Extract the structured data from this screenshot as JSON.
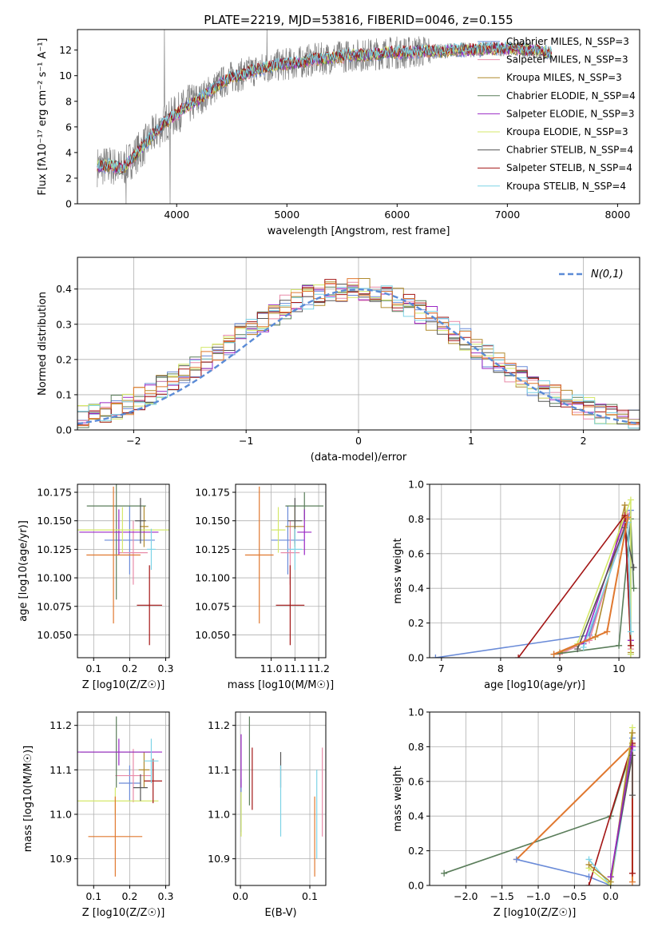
{
  "figure": {
    "title": "PLATE=2219, MJD=53816, FIBERID=0046, z=0.155"
  },
  "colors": {
    "models": [
      "#6a8bd8",
      "#e88aa8",
      "#b08a2e",
      "#5a7d5a",
      "#9a27c4",
      "#d4e86a",
      "#555555",
      "#a31515",
      "#7ed3e6"
    ],
    "orange": "#e0782f",
    "data": "#808080",
    "grid": "#b0b0b0"
  },
  "chart_data": [
    {
      "id": "spectrum",
      "type": "line",
      "title": "PLATE=2219, MJD=53816, FIBERID=0046, z=0.155",
      "xlabel": "wavelength [Angstrom, rest frame]",
      "ylabel": "Flux [fλ10⁻¹⁷ erg cm⁻² s⁻¹ A⁻¹]",
      "xlim": [
        3100,
        8200
      ],
      "ylim": [
        0,
        13.6
      ],
      "xticks": [
        4000,
        5000,
        6000,
        7000,
        8000
      ],
      "yticks": [
        0,
        2,
        4,
        6,
        8,
        10,
        12
      ],
      "grid": false,
      "legend_position": "top-right",
      "legend": [
        "Chabrier MILES, N_SSP=3",
        "Salpeter MILES, N_SSP=3",
        "Kroupa MILES, N_SSP=3",
        "Chabrier ELODIE, N_SSP=4",
        "Salpeter ELODIE, N_SSP=3",
        "Kroupa ELODIE, N_SSP=3",
        "Chabrier STELIB, N_SSP=4",
        "Salpeter STELIB, N_SSP=4",
        "Kroupa STELIB, N_SSP=4"
      ],
      "model_curve": {
        "x": [
          3280,
          3400,
          3500,
          3540,
          3600,
          3700,
          3800,
          3900,
          4000,
          4100,
          4200,
          4300,
          4400,
          4500,
          4600,
          4700,
          4800,
          4900,
          5000,
          5100,
          5200,
          5300,
          5400,
          5500,
          5600,
          5700,
          5800,
          5900,
          6000,
          6100,
          6200,
          6300,
          6400,
          6500,
          6600,
          6700,
          6800,
          6900,
          7000,
          7100,
          7200,
          7300,
          7400
        ],
        "y": [
          2.9,
          3.0,
          2.7,
          3.0,
          3.6,
          4.5,
          5.5,
          6.4,
          7.0,
          7.7,
          8.1,
          8.8,
          9.4,
          9.9,
          10.1,
          10.4,
          10.6,
          10.8,
          10.9,
          11.0,
          11.2,
          11.3,
          11.4,
          11.5,
          11.6,
          11.6,
          11.7,
          11.8,
          11.8,
          11.8,
          11.9,
          11.9,
          11.9,
          12.0,
          12.0,
          12.0,
          12.1,
          12.1,
          12.1,
          12.1,
          12.0,
          11.9,
          11.7
        ]
      }
    },
    {
      "id": "residuals",
      "type": "line",
      "xlabel": "(data-model)/error",
      "ylabel": "Normed distribution",
      "xlim": [
        -2.5,
        2.5
      ],
      "ylim": [
        0,
        0.49
      ],
      "xticks": [
        -2,
        -1,
        0,
        1,
        2
      ],
      "yticks": [
        0.0,
        0.1,
        0.2,
        0.3,
        0.4
      ],
      "grid": true,
      "legend": [
        "N(0,1)"
      ],
      "legend_position": "top-right",
      "bin_width": 0.1,
      "gaussian": {
        "mean": 0,
        "sigma": 1
      }
    },
    {
      "id": "age-vs-Z",
      "type": "scatter",
      "xlabel": "Z [log10(Z/Z☉)]",
      "ylabel": "age  [log10(age/yr)]",
      "xlim": [
        0.055,
        0.31
      ],
      "ylim": [
        10.03,
        10.182
      ],
      "xticks": [
        0.1,
        0.2,
        0.3
      ],
      "yticks": [
        10.05,
        10.075,
        10.1,
        10.125,
        10.15,
        10.175
      ],
      "grid": true,
      "points": [
        {
          "c": 0,
          "x": 0.2,
          "y": 10.133,
          "ex": 0.07,
          "ey": 0.03
        },
        {
          "c": 1,
          "x": 0.21,
          "y": 10.122,
          "ex": 0.04,
          "ey": 0.028
        },
        {
          "c": 2,
          "x": 0.24,
          "y": 10.145,
          "ex": 0.012,
          "ey": 0.018
        },
        {
          "c": 3,
          "x": 0.163,
          "y": 10.163,
          "ex": 0.082,
          "ey": 0.082
        },
        {
          "c": 4,
          "x": 0.17,
          "y": 10.14,
          "ex": 0.11,
          "ey": 0.02
        },
        {
          "c": 5,
          "x": 0.18,
          "y": 10.142,
          "ex": 0.13,
          "ey": 0.02
        },
        {
          "c": 6,
          "x": 0.23,
          "y": 10.15,
          "ex": 0.015,
          "ey": 0.02
        },
        {
          "c": 7,
          "x": 0.255,
          "y": 10.076,
          "ex": 0.035,
          "ey": 0.035
        },
        {
          "c": 8,
          "x": 0.26,
          "y": 10.125,
          "ex": 0.012,
          "ey": 0.018
        },
        {
          "c": "orange",
          "x": 0.155,
          "y": 10.12,
          "ex": 0.075,
          "ey": 0.06
        }
      ]
    },
    {
      "id": "age-vs-mass",
      "type": "scatter",
      "xlabel": "mass [log10(M/M☉)]",
      "ylabel": "",
      "xlim": [
        10.85,
        11.23
      ],
      "ylim": [
        10.03,
        10.182
      ],
      "xticks": [
        11.0,
        11.1,
        11.2
      ],
      "yticks": [
        10.05,
        10.075,
        10.1,
        10.125,
        10.15,
        10.175
      ],
      "grid": true,
      "points": [
        {
          "c": 0,
          "x": 11.07,
          "y": 10.133,
          "ex": 0.07,
          "ey": 0.03
        },
        {
          "c": 1,
          "x": 11.08,
          "y": 10.122,
          "ex": 0.04,
          "ey": 0.028
        },
        {
          "c": 2,
          "x": 11.1,
          "y": 10.145,
          "ex": 0.04,
          "ey": 0.018
        },
        {
          "c": 3,
          "x": 11.14,
          "y": 10.163,
          "ex": 0.08,
          "ey": 0.012
        },
        {
          "c": 4,
          "x": 11.14,
          "y": 10.14,
          "ex": 0.03,
          "ey": 0.02
        },
        {
          "c": 5,
          "x": 11.03,
          "y": 10.142,
          "ex": 0.03,
          "ey": 0.02
        },
        {
          "c": 6,
          "x": 11.1,
          "y": 10.15,
          "ex": 0.03,
          "ey": 0.02
        },
        {
          "c": 7,
          "x": 11.08,
          "y": 10.076,
          "ex": 0.06,
          "ey": 0.035
        },
        {
          "c": 8,
          "x": 11.1,
          "y": 10.125,
          "ex": 0.03,
          "ey": 0.018
        },
        {
          "c": "orange",
          "x": 10.95,
          "y": 10.12,
          "ex": 0.06,
          "ey": 0.06
        }
      ]
    },
    {
      "id": "weight-vs-age",
      "type": "line",
      "xlabel": "age  [log10(age/yr)]",
      "ylabel": "mass weight",
      "xlim": [
        6.8,
        10.35
      ],
      "ylim": [
        0,
        1.0
      ],
      "xticks": [
        7,
        8,
        9,
        10
      ],
      "yticks": [
        0.0,
        0.2,
        0.4,
        0.6,
        0.8,
        1.0
      ],
      "grid": true,
      "series": [
        {
          "c": 0,
          "x": [
            6.9,
            9.5,
            10.2,
            10.2
          ],
          "y": [
            0.0,
            0.13,
            0.85,
            0.02
          ]
        },
        {
          "c": 1,
          "x": [
            9.0,
            9.5,
            10.15,
            10.2
          ],
          "y": [
            0.02,
            0.1,
            0.83,
            0.05
          ]
        },
        {
          "c": 2,
          "x": [
            9.0,
            9.6,
            10.1,
            10.2
          ],
          "y": [
            0.03,
            0.12,
            0.88,
            0.03
          ]
        },
        {
          "c": 3,
          "x": [
            8.9,
            10.0,
            10.2,
            10.25
          ],
          "y": [
            0.02,
            0.07,
            0.8,
            0.4
          ]
        },
        {
          "c": 4,
          "x": [
            9.4,
            10.1,
            10.2
          ],
          "y": [
            0.08,
            0.8,
            0.1
          ]
        },
        {
          "c": 5,
          "x": [
            9.3,
            10.2,
            10.2
          ],
          "y": [
            0.08,
            0.91,
            0.02
          ]
        },
        {
          "c": 6,
          "x": [
            9.3,
            10.1,
            10.25
          ],
          "y": [
            0.05,
            0.75,
            0.52
          ]
        },
        {
          "c": 7,
          "x": [
            8.3,
            10.1,
            10.2
          ],
          "y": [
            0.0,
            0.82,
            0.07
          ]
        },
        {
          "c": 8,
          "x": [
            9.4,
            10.15,
            10.2
          ],
          "y": [
            0.06,
            0.78,
            0.15
          ]
        },
        {
          "c": "orange",
          "x": [
            8.9,
            9.8,
            10.15
          ],
          "y": [
            0.02,
            0.15,
            0.81
          ]
        }
      ]
    },
    {
      "id": "mass-vs-Z",
      "type": "scatter",
      "xlabel": "Z [log10(Z/Z☉)]",
      "ylabel": "mass [log10(M/M☉)]",
      "xlim": [
        0.055,
        0.31
      ],
      "ylim": [
        10.84,
        11.23
      ],
      "xticks": [
        0.1,
        0.2,
        0.3
      ],
      "yticks": [
        10.9,
        11.0,
        11.1,
        11.2
      ],
      "grid": true,
      "points": [
        {
          "c": 0,
          "x": 0.2,
          "y": 11.07,
          "ex": 0.03,
          "ey": 0.04
        },
        {
          "c": 1,
          "x": 0.21,
          "y": 11.087,
          "ex": 0.05,
          "ey": 0.06
        },
        {
          "c": 2,
          "x": 0.24,
          "y": 11.1,
          "ex": 0.015,
          "ey": 0.04
        },
        {
          "c": 3,
          "x": 0.163,
          "y": 11.14,
          "ex": 0.1,
          "ey": 0.08
        },
        {
          "c": 4,
          "x": 0.17,
          "y": 11.14,
          "ex": 0.12,
          "ey": 0.03
        },
        {
          "c": 5,
          "x": 0.16,
          "y": 11.03,
          "ex": 0.12,
          "ey": 0.03
        },
        {
          "c": 6,
          "x": 0.23,
          "y": 11.06,
          "ex": 0.02,
          "ey": 0.03
        },
        {
          "c": 7,
          "x": 0.265,
          "y": 11.075,
          "ex": 0.025,
          "ey": 0.05
        },
        {
          "c": 8,
          "x": 0.26,
          "y": 11.12,
          "ex": 0.02,
          "ey": 0.05
        },
        {
          "c": "orange",
          "x": 0.16,
          "y": 10.95,
          "ex": 0.075,
          "ey": 0.09
        }
      ]
    },
    {
      "id": "mass-vs-EBV",
      "type": "scatter",
      "xlabel": "E(B-V)",
      "ylabel": "",
      "xlim": [
        -0.007,
        0.123
      ],
      "ylim": [
        10.84,
        11.23
      ],
      "xticks": [
        0.0,
        0.1
      ],
      "yticks": [
        10.9,
        11.0,
        11.1,
        11.2
      ],
      "grid": true,
      "points": [
        {
          "c": 0,
          "x": 0.001,
          "y": 11.02,
          "ex": 0,
          "ey": 0.06
        },
        {
          "c": 4,
          "x": 0.001,
          "y": 11.12,
          "ex": 0,
          "ey": 0.06
        },
        {
          "c": 3,
          "x": 0.013,
          "y": 11.12,
          "ex": 0,
          "ey": 0.1
        },
        {
          "c": 7,
          "x": 0.017,
          "y": 11.08,
          "ex": 0,
          "ey": 0.07
        },
        {
          "c": 5,
          "x": 0.001,
          "y": 11.0,
          "ex": 0,
          "ey": 0.05
        },
        {
          "c": 6,
          "x": 0.058,
          "y": 11.1,
          "ex": 0,
          "ey": 0.04
        },
        {
          "c": 8,
          "x": 0.058,
          "y": 11.03,
          "ex": 0,
          "ey": 0.08
        },
        {
          "c": "orange",
          "x": 0.107,
          "y": 10.95,
          "ex": 0,
          "ey": 0.09
        },
        {
          "c": 8,
          "x": 0.11,
          "y": 11.0,
          "ex": 0,
          "ey": 0.1
        },
        {
          "c": 1,
          "x": 0.118,
          "y": 11.05,
          "ex": 0,
          "ey": 0.1
        }
      ]
    },
    {
      "id": "weight-vs-Z",
      "type": "line",
      "xlabel": "Z [log10(Z/Z☉)]",
      "ylabel": "mass weight",
      "xlim": [
        -2.5,
        0.4
      ],
      "ylim": [
        0,
        1.0
      ],
      "xticks": [
        -2.0,
        -1.5,
        -1.0,
        -0.5,
        0.0
      ],
      "yticks": [
        0.0,
        0.2,
        0.4,
        0.6,
        0.8,
        1.0
      ],
      "grid": true,
      "series": [
        {
          "c": 3,
          "x": [
            -2.3,
            0.0,
            0.3
          ],
          "y": [
            0.07,
            0.4,
            0.8
          ]
        },
        {
          "c": "orange",
          "x": [
            -1.3,
            0.3,
            0.3
          ],
          "y": [
            0.15,
            0.81,
            0.02
          ]
        },
        {
          "c": 0,
          "x": [
            -1.3,
            -0.3,
            0.0,
            0.3
          ],
          "y": [
            0.15,
            0.05,
            0.0,
            0.85
          ]
        },
        {
          "c": 7,
          "x": [
            -0.3,
            0.3,
            0.3
          ],
          "y": [
            0.0,
            0.82,
            0.07
          ]
        },
        {
          "c": 8,
          "x": [
            -0.3,
            0.0,
            0.3
          ],
          "y": [
            0.15,
            0.0,
            0.78
          ]
        },
        {
          "c": 5,
          "x": [
            -0.3,
            0.0,
            0.3
          ],
          "y": [
            0.1,
            0.0,
            0.91
          ]
        },
        {
          "c": 2,
          "x": [
            -0.3,
            0.0,
            0.3
          ],
          "y": [
            0.12,
            0.02,
            0.88
          ]
        },
        {
          "c": 6,
          "x": [
            0.0,
            0.3,
            0.3
          ],
          "y": [
            0.05,
            0.75,
            0.52
          ]
        },
        {
          "c": 4,
          "x": [
            0.0,
            0.3
          ],
          "y": [
            0.05,
            0.8
          ]
        }
      ]
    }
  ]
}
